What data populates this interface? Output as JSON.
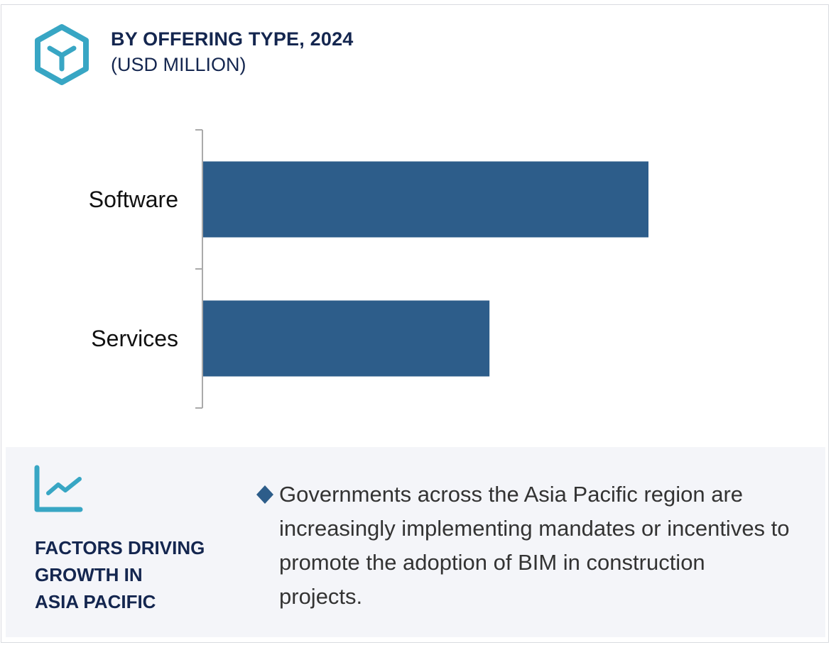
{
  "header": {
    "icon": "hexagon-y-icon",
    "title": "BY OFFERING TYPE, 2024",
    "subtitle": "(USD MILLION)"
  },
  "chart_data": {
    "type": "bar",
    "orientation": "horizontal",
    "title": "BY OFFERING TYPE, 2024",
    "ylabel": "(USD MILLION)",
    "categories": [
      "Software",
      "Services"
    ],
    "values": [
      1.0,
      0.643
    ],
    "value_note": "relative lengths (no axis values shown)",
    "xlim": [
      0,
      1.0
    ],
    "grid": false,
    "bar_color": "#2d5d8a"
  },
  "factors": {
    "icon": "trend-chart-icon",
    "heading_lines": [
      "FACTORS DRIVING",
      "GROWTH IN",
      "ASIA PACIFIC"
    ],
    "bullet_icon": "diamond-icon",
    "bullet_text": "Governments across the Asia Pacific region are increasingly implementing mandates or incentives to promote the adoption of BIM in construction projects."
  },
  "colors": {
    "accent": "#38a6c4",
    "navy": "#14264f",
    "bar": "#2d5d8a",
    "panel": "#f4f5f9"
  }
}
